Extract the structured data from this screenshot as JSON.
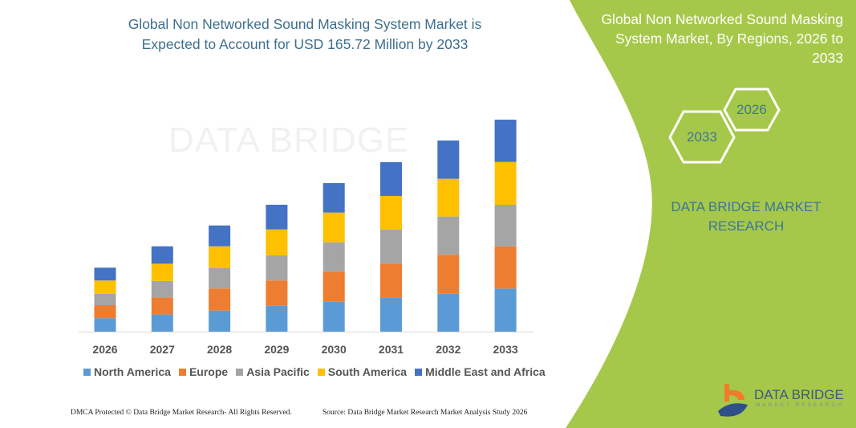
{
  "header": {
    "title_line1": "Global Non Networked Sound Masking System Market is",
    "title_line2": "Expected to Account for USD 165.72 Million by 2033"
  },
  "side_panel": {
    "title_line1": "Global Non Networked Sound Masking",
    "title_line2": "System Market, By Regions, 2026 to",
    "title_line3": "2033",
    "hex_start": "2026",
    "hex_end": "2033",
    "brand_line1": "DATA BRIDGE MARKET",
    "brand_line2": "RESEARCH",
    "panel_color": "#a6c84a",
    "logo_text": "DATA BRIDGE",
    "logo_sub": "MARKET RESEARCH"
  },
  "watermark": "DATA BRIDGE",
  "footer": {
    "left": "DMCA Protected © Data Bridge Market Research-  All Rights Reserved.",
    "right": "Source: Data Bridge Market Research  Market Analysis Study 2026"
  },
  "chart_data": {
    "type": "bar",
    "stacked": true,
    "title": "Global Non Networked Sound Masking System Market is Expected to Account for USD 165.72 Million by 2033",
    "xlabel": "",
    "ylabel": "",
    "unit": "USD Million",
    "grid": false,
    "legend": "bottom",
    "categories": [
      "2026",
      "2027",
      "2028",
      "2029",
      "2030",
      "2031",
      "2032",
      "2033"
    ],
    "ylim": [
      0,
      170
    ],
    "series": [
      {
        "name": "North America",
        "color": "#5b9bd5",
        "values": [
          10.5,
          13.4,
          16.5,
          20.3,
          23.4,
          26.6,
          29.7,
          33.7
        ]
      },
      {
        "name": "Europe",
        "color": "#ed7d31",
        "values": [
          10.2,
          13.4,
          17.2,
          19.7,
          23.5,
          26.6,
          30.4,
          33.0
        ]
      },
      {
        "name": "Asia Pacific",
        "color": "#a5a5a5",
        "values": [
          9.0,
          12.9,
          16.1,
          19.6,
          23.0,
          26.7,
          29.9,
          32.5
        ]
      },
      {
        "name": "South America",
        "color": "#ffc000",
        "values": [
          10.3,
          13.4,
          16.9,
          20.3,
          23.2,
          26.2,
          29.5,
          33.5
        ]
      },
      {
        "name": "Middle East and Africa",
        "color": "#4472c4",
        "values": [
          10.0,
          13.6,
          16.3,
          19.3,
          23.0,
          26.4,
          29.9,
          33.0
        ]
      }
    ]
  }
}
